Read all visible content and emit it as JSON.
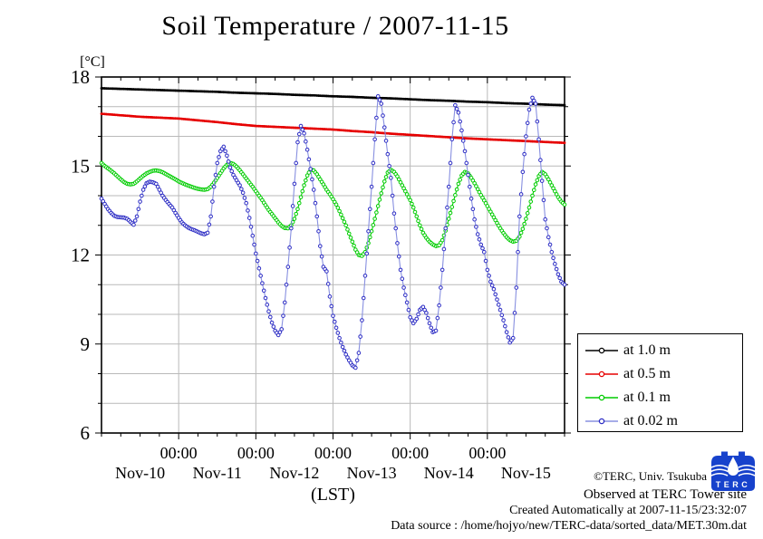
{
  "accent_colors": {
    "grid": "#b9b9b9",
    "frame": "#000000",
    "logo_blue": "#1742cc"
  },
  "annotations": {
    "copyright": "©TERC, Univ. Tsukuba",
    "observed": "Observed at TERC Tower site",
    "created": "Created Automatically at 2007-11-15/23:32:07",
    "datasource": "Data source : /home/hojyo/new/TERC-data/sorted_data/MET.30m.dat",
    "logo_text": "TERC"
  },
  "chart_data": {
    "type": "line",
    "title": "Soil Temperature / 2007-11-15",
    "xlabel": "(LST)",
    "ylabel": "[°C]",
    "ylim": [
      6,
      18
    ],
    "y_major_ticks": [
      18,
      15,
      12,
      9,
      6
    ],
    "y_minor_step": 1,
    "x_hours_range": [
      0,
      144
    ],
    "x_major_tick_hours": [
      24,
      48,
      72,
      96,
      120
    ],
    "x_minor_step_hours": 6,
    "x_time_label": "00:00",
    "x_day_labels": [
      "Nov-10",
      "Nov-11",
      "Nov-12",
      "Nov-13",
      "Nov-14",
      "Nov-15"
    ],
    "grid": true,
    "legend_position": "outside-right",
    "series": [
      {
        "name": "at 1.0 m",
        "color": "#000000",
        "line_color": "#000000",
        "marker": "dot",
        "step_hours": 6,
        "values": [
          17.62,
          17.6,
          17.58,
          17.56,
          17.54,
          17.52,
          17.5,
          17.47,
          17.45,
          17.43,
          17.4,
          17.38,
          17.35,
          17.33,
          17.3,
          17.28,
          17.25,
          17.22,
          17.2,
          17.17,
          17.15,
          17.12,
          17.1,
          17.07,
          17.05
        ]
      },
      {
        "name": "at 0.5 m",
        "color": "#e60000",
        "line_color": "#e60000",
        "marker": "dot",
        "step_hours": 6,
        "values": [
          16.76,
          16.71,
          16.66,
          16.63,
          16.6,
          16.54,
          16.48,
          16.41,
          16.35,
          16.32,
          16.29,
          16.26,
          16.23,
          16.18,
          16.14,
          16.09,
          16.05,
          16.01,
          15.97,
          15.93,
          15.9,
          15.87,
          15.84,
          15.81,
          15.78
        ]
      },
      {
        "name": "at 0.1 m",
        "color": "#00cc00",
        "line_color": "#00cc00",
        "marker": "circle",
        "step_hours": 1,
        "values": [
          15.1,
          15.0,
          14.92,
          14.84,
          14.75,
          14.65,
          14.55,
          14.46,
          14.4,
          14.38,
          14.4,
          14.48,
          14.58,
          14.67,
          14.75,
          14.8,
          14.84,
          14.85,
          14.83,
          14.79,
          14.73,
          14.67,
          14.61,
          14.55,
          14.48,
          14.43,
          14.38,
          14.34,
          14.3,
          14.26,
          14.23,
          14.21,
          14.2,
          14.22,
          14.3,
          14.44,
          14.6,
          14.76,
          14.92,
          15.04,
          15.1,
          15.07,
          14.98,
          14.86,
          14.72,
          14.58,
          14.44,
          14.3,
          14.15,
          14.0,
          13.85,
          13.68,
          13.52,
          13.38,
          13.24,
          13.1,
          12.98,
          12.91,
          12.9,
          13.0,
          13.22,
          13.55,
          13.95,
          14.35,
          14.68,
          14.88,
          14.85,
          14.72,
          14.55,
          14.38,
          14.2,
          14.05,
          13.88,
          13.7,
          13.48,
          13.24,
          13.0,
          12.72,
          12.45,
          12.18,
          12.0,
          11.97,
          12.1,
          12.4,
          12.8,
          13.22,
          13.65,
          14.08,
          14.48,
          14.78,
          14.87,
          14.8,
          14.65,
          14.45,
          14.25,
          14.05,
          13.85,
          13.6,
          13.3,
          13.0,
          12.75,
          12.58,
          12.45,
          12.36,
          12.3,
          12.33,
          12.5,
          12.82,
          13.22,
          13.62,
          14.02,
          14.4,
          14.68,
          14.8,
          14.75,
          14.6,
          14.42,
          14.22,
          14.02,
          13.84,
          13.65,
          13.46,
          13.27,
          13.08,
          12.9,
          12.74,
          12.6,
          12.5,
          12.45,
          12.48,
          12.62,
          12.88,
          13.22,
          13.6,
          14.0,
          14.38,
          14.66,
          14.8,
          14.72,
          14.55,
          14.35,
          14.15,
          13.95,
          13.8,
          13.7
        ]
      },
      {
        "name": "at 0.02 m",
        "color": "#2c2cc4",
        "line_color": "#8890e0",
        "marker": "circle",
        "step_hours": 1,
        "values": [
          13.9,
          13.72,
          13.55,
          13.42,
          13.32,
          13.28,
          13.27,
          13.26,
          13.22,
          13.12,
          13.02,
          13.3,
          13.8,
          14.2,
          14.42,
          14.47,
          14.45,
          14.4,
          14.2,
          14.0,
          13.85,
          13.72,
          13.6,
          13.42,
          13.25,
          13.1,
          13.0,
          12.92,
          12.87,
          12.83,
          12.78,
          12.73,
          12.7,
          12.75,
          13.3,
          14.3,
          15.1,
          15.5,
          15.65,
          15.35,
          14.95,
          14.7,
          14.52,
          14.35,
          14.1,
          13.75,
          13.25,
          12.65,
          12.05,
          11.55,
          11.05,
          10.55,
          10.1,
          9.72,
          9.45,
          9.3,
          9.5,
          10.4,
          11.6,
          12.9,
          14.4,
          15.8,
          16.35,
          16.1,
          15.55,
          14.9,
          14.2,
          13.3,
          12.3,
          11.6,
          11.45,
          10.6,
          9.95,
          9.55,
          9.2,
          8.9,
          8.65,
          8.45,
          8.28,
          8.2,
          8.7,
          9.8,
          11.3,
          12.8,
          14.3,
          15.9,
          17.35,
          17.1,
          16.3,
          15.4,
          14.6,
          13.4,
          12.4,
          11.5,
          10.9,
          10.4,
          9.9,
          9.7,
          9.85,
          10.15,
          10.25,
          10.05,
          9.7,
          9.4,
          9.45,
          10.3,
          11.5,
          12.9,
          14.3,
          15.9,
          17.05,
          16.8,
          16.2,
          15.5,
          14.7,
          13.9,
          13.2,
          12.7,
          12.35,
          12.1,
          11.5,
          11.1,
          10.85,
          10.5,
          10.15,
          9.8,
          9.4,
          9.05,
          9.2,
          10.9,
          13.3,
          14.8,
          16.0,
          16.9,
          17.3,
          17.1,
          15.9,
          14.5,
          13.2,
          12.6,
          12.1,
          11.7,
          11.35,
          11.1,
          11.0
        ]
      }
    ]
  }
}
